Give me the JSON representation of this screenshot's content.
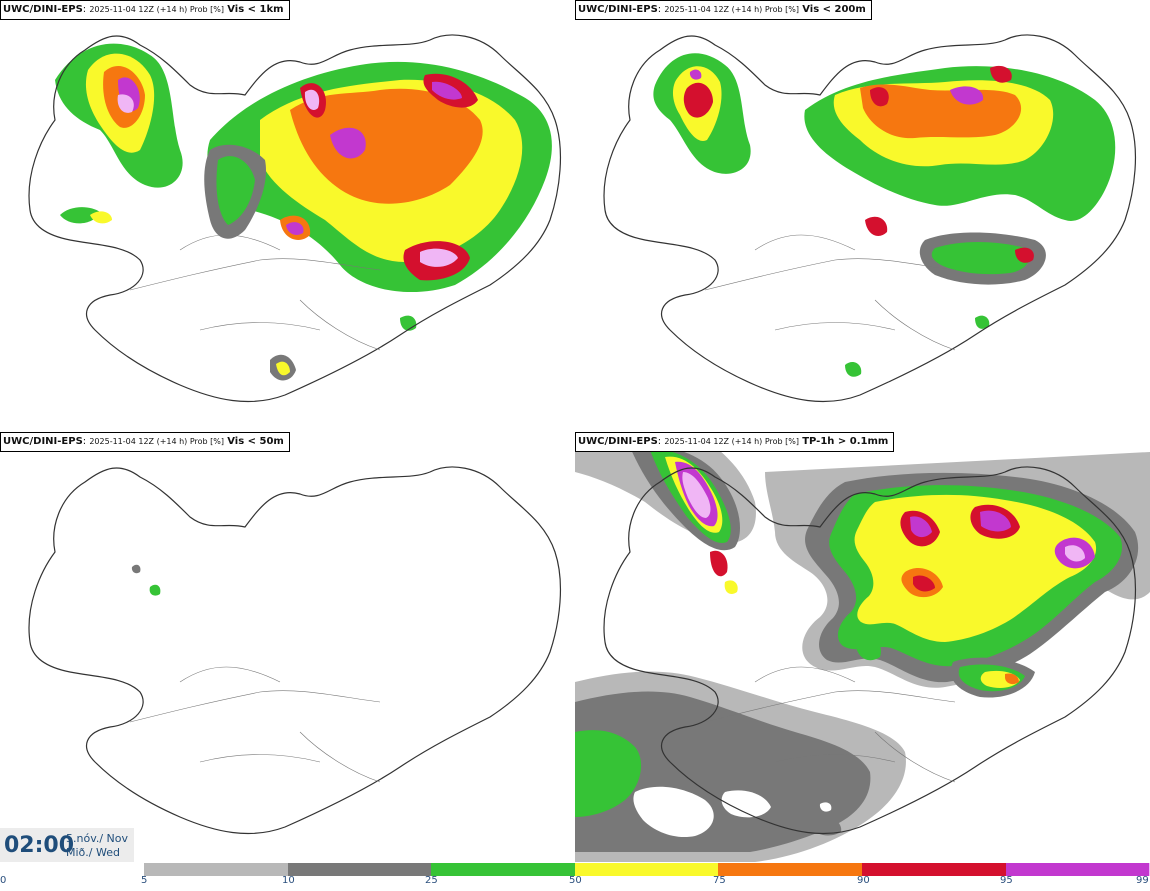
{
  "panels": [
    {
      "model": "UWC/DINI-EPS",
      "meta": "2025-11-04 12Z (+14 h) Prob [%]",
      "parameter": "Vis < 1km"
    },
    {
      "model": "UWC/DINI-EPS",
      "meta": "2025-11-04 12Z (+14 h) Prob [%]",
      "parameter": "Vis < 200m"
    },
    {
      "model": "UWC/DINI-EPS",
      "meta": "2025-11-04 12Z (+14 h) Prob [%]",
      "parameter": "Vis < 50m"
    },
    {
      "model": "UWC/DINI-EPS",
      "meta": "2025-11-04 12Z (+14 h) Prob [%]",
      "parameter": "TP-1h > 0.1mm"
    }
  ],
  "timebox": {
    "time": "02:00",
    "date_line_1": "5.nóv./ Nov",
    "date_line_2": "Mið./ Wed"
  },
  "legend": {
    "ticks": [
      "0",
      "5",
      "10",
      "25",
      "50",
      "75",
      "90",
      "95",
      "99"
    ],
    "colors": [
      "#b8b8b8",
      "#787878",
      "#36c336",
      "#f9f92b",
      "#f67710",
      "#d4102e",
      "#c238cf",
      "#f0b6f5"
    ]
  },
  "icons": {
    "coastline": "iceland-coastline",
    "county_lines": "boundary-lines"
  }
}
